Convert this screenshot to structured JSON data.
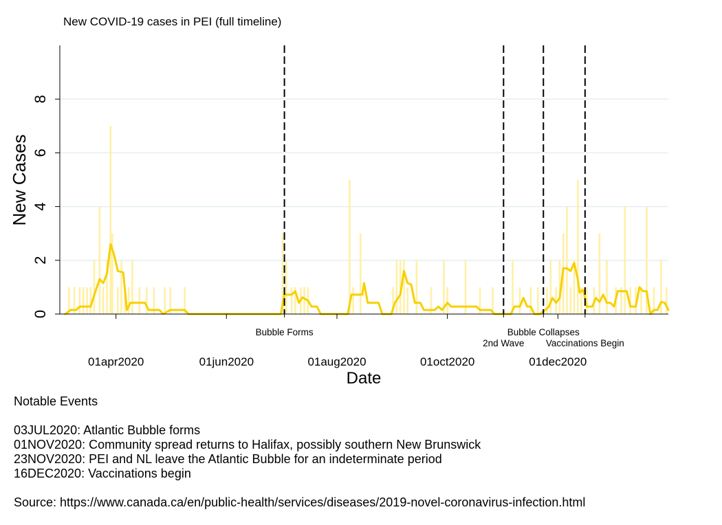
{
  "chart_data": {
    "type": "bar",
    "title": "New COVID-19 cases in PEI (full timeline)",
    "xlabel": "Date",
    "ylabel": "New Cases",
    "xlim": [
      "2020-03-01",
      "2021-01-31"
    ],
    "ylim": [
      0,
      10
    ],
    "x_ticks": [
      {
        "date": "2020-04-01",
        "label": "01apr2020"
      },
      {
        "date": "2020-06-01",
        "label": "01jun2020"
      },
      {
        "date": "2020-08-01",
        "label": "01aug2020"
      },
      {
        "date": "2020-10-01",
        "label": "01oct2020"
      },
      {
        "date": "2020-12-01",
        "label": "01dec2020"
      }
    ],
    "y_ticks": [
      0,
      2,
      4,
      6,
      8
    ],
    "grid": true,
    "bar_color": "#FFF0A8",
    "line_color": "#F7D000",
    "events": [
      {
        "date": "2020-07-03",
        "label": "Bubble Forms"
      },
      {
        "date": "2020-11-01",
        "label": "2nd Wave"
      },
      {
        "date": "2020-11-23",
        "label": "Bubble Collapses"
      },
      {
        "date": "2020-12-16",
        "label": "Vaccinations Begin"
      }
    ],
    "series": [
      {
        "name": "daily new cases",
        "points": [
          [
            "2020-03-06",
            1
          ],
          [
            "2020-03-09",
            1
          ],
          [
            "2020-03-12",
            1
          ],
          [
            "2020-03-14",
            1
          ],
          [
            "2020-03-16",
            1
          ],
          [
            "2020-03-18",
            1
          ],
          [
            "2020-03-20",
            2
          ],
          [
            "2020-03-23",
            4
          ],
          [
            "2020-03-25",
            1
          ],
          [
            "2020-03-27",
            2
          ],
          [
            "2020-03-29",
            7
          ],
          [
            "2020-03-30",
            3
          ],
          [
            "2020-04-02",
            1
          ],
          [
            "2020-04-04",
            2
          ],
          [
            "2020-04-06",
            1
          ],
          [
            "2020-04-08",
            1
          ],
          [
            "2020-04-10",
            2
          ],
          [
            "2020-04-14",
            1
          ],
          [
            "2020-04-18",
            1
          ],
          [
            "2020-04-22",
            1
          ],
          [
            "2020-04-28",
            1
          ],
          [
            "2020-05-01",
            1
          ],
          [
            "2020-05-09",
            1
          ],
          [
            "2020-07-02",
            3
          ],
          [
            "2020-07-04",
            2
          ],
          [
            "2020-07-07",
            1
          ],
          [
            "2020-07-09",
            1
          ],
          [
            "2020-07-12",
            1
          ],
          [
            "2020-07-14",
            1
          ],
          [
            "2020-07-16",
            1
          ],
          [
            "2020-08-08",
            5
          ],
          [
            "2020-08-10",
            1
          ],
          [
            "2020-08-14",
            3
          ],
          [
            "2020-09-01",
            1
          ],
          [
            "2020-09-03",
            2
          ],
          [
            "2020-09-05",
            2
          ],
          [
            "2020-09-07",
            2
          ],
          [
            "2020-09-09",
            1
          ],
          [
            "2020-09-14",
            2
          ],
          [
            "2020-09-22",
            1
          ],
          [
            "2020-09-29",
            2
          ],
          [
            "2020-10-01",
            1
          ],
          [
            "2020-10-11",
            2
          ],
          [
            "2020-10-19",
            1
          ],
          [
            "2020-10-26",
            1
          ],
          [
            "2020-11-06",
            2
          ],
          [
            "2020-11-10",
            1
          ],
          [
            "2020-11-16",
            1
          ],
          [
            "2020-11-20",
            1
          ],
          [
            "2020-11-25",
            1
          ],
          [
            "2020-11-27",
            2
          ],
          [
            "2020-11-30",
            1
          ],
          [
            "2020-12-02",
            2
          ],
          [
            "2020-12-04",
            3
          ],
          [
            "2020-12-06",
            4
          ],
          [
            "2020-12-08",
            1
          ],
          [
            "2020-12-10",
            2
          ],
          [
            "2020-12-12",
            5
          ],
          [
            "2020-12-14",
            1
          ],
          [
            "2020-12-17",
            1
          ],
          [
            "2020-12-21",
            1
          ],
          [
            "2020-12-24",
            3
          ],
          [
            "2020-12-28",
            2
          ],
          [
            "2021-01-02",
            1
          ],
          [
            "2021-01-05",
            1
          ],
          [
            "2021-01-07",
            4
          ],
          [
            "2021-01-10",
            1
          ],
          [
            "2021-01-13",
            1
          ],
          [
            "2021-01-16",
            1
          ],
          [
            "2021-01-19",
            4
          ],
          [
            "2021-01-23",
            1
          ],
          [
            "2021-01-27",
            2
          ],
          [
            "2021-01-30",
            1
          ]
        ]
      },
      {
        "name": "7-day average",
        "points": [
          [
            "2020-03-04",
            0
          ],
          [
            "2020-03-07",
            0.15
          ],
          [
            "2020-03-10",
            0.15
          ],
          [
            "2020-03-12",
            0.28
          ],
          [
            "2020-03-18",
            0.28
          ],
          [
            "2020-03-20",
            0.7
          ],
          [
            "2020-03-23",
            1.3
          ],
          [
            "2020-03-25",
            1.15
          ],
          [
            "2020-03-27",
            1.5
          ],
          [
            "2020-03-29",
            2.6
          ],
          [
            "2020-03-31",
            2.2
          ],
          [
            "2020-04-02",
            1.6
          ],
          [
            "2020-04-05",
            1.55
          ],
          [
            "2020-04-07",
            0.15
          ],
          [
            "2020-04-09",
            0.42
          ],
          [
            "2020-04-17",
            0.42
          ],
          [
            "2020-04-19",
            0.15
          ],
          [
            "2020-04-25",
            0.15
          ],
          [
            "2020-04-27",
            0
          ],
          [
            "2020-05-01",
            0.15
          ],
          [
            "2020-05-09",
            0.15
          ],
          [
            "2020-05-11",
            0
          ],
          [
            "2020-07-01",
            0
          ],
          [
            "2020-07-03",
            0.72
          ],
          [
            "2020-07-07",
            0.72
          ],
          [
            "2020-07-09",
            0.85
          ],
          [
            "2020-07-11",
            0.42
          ],
          [
            "2020-07-13",
            0.62
          ],
          [
            "2020-07-16",
            0.5
          ],
          [
            "2020-07-18",
            0.28
          ],
          [
            "2020-07-21",
            0.28
          ],
          [
            "2020-07-23",
            0
          ],
          [
            "2020-08-07",
            0
          ],
          [
            "2020-08-09",
            0.72
          ],
          [
            "2020-08-15",
            0.72
          ],
          [
            "2020-08-16",
            1.15
          ],
          [
            "2020-08-18",
            0.42
          ],
          [
            "2020-08-24",
            0.42
          ],
          [
            "2020-08-26",
            0
          ],
          [
            "2020-08-31",
            0
          ],
          [
            "2020-09-02",
            0.42
          ],
          [
            "2020-09-05",
            0.72
          ],
          [
            "2020-09-07",
            1.6
          ],
          [
            "2020-09-09",
            1.15
          ],
          [
            "2020-09-11",
            1.1
          ],
          [
            "2020-09-13",
            0.42
          ],
          [
            "2020-09-16",
            0.42
          ],
          [
            "2020-09-18",
            0.15
          ],
          [
            "2020-09-24",
            0.15
          ],
          [
            "2020-09-26",
            0.28
          ],
          [
            "2020-09-28",
            0.15
          ],
          [
            "2020-10-01",
            0.42
          ],
          [
            "2020-10-03",
            0.28
          ],
          [
            "2020-10-17",
            0.28
          ],
          [
            "2020-10-19",
            0.15
          ],
          [
            "2020-10-25",
            0.15
          ],
          [
            "2020-10-27",
            0
          ],
          [
            "2020-11-05",
            0
          ],
          [
            "2020-11-07",
            0.28
          ],
          [
            "2020-11-10",
            0.28
          ],
          [
            "2020-11-12",
            0.6
          ],
          [
            "2020-11-14",
            0.28
          ],
          [
            "2020-11-16",
            0.28
          ],
          [
            "2020-11-18",
            0
          ],
          [
            "2020-11-21",
            0
          ],
          [
            "2020-11-24",
            0.15
          ],
          [
            "2020-11-26",
            0.28
          ],
          [
            "2020-11-28",
            0.6
          ],
          [
            "2020-11-30",
            0.42
          ],
          [
            "2020-12-02",
            0.6
          ],
          [
            "2020-12-04",
            1.7
          ],
          [
            "2020-12-06",
            1.7
          ],
          [
            "2020-12-08",
            1.6
          ],
          [
            "2020-12-10",
            1.9
          ],
          [
            "2020-12-12",
            1.3
          ],
          [
            "2020-12-13",
            0.8
          ],
          [
            "2020-12-15",
            0.9
          ],
          [
            "2020-12-17",
            0.28
          ],
          [
            "2020-12-20",
            0.28
          ],
          [
            "2020-12-22",
            0.6
          ],
          [
            "2020-12-24",
            0.45
          ],
          [
            "2020-12-26",
            0.72
          ],
          [
            "2020-12-28",
            0.42
          ],
          [
            "2020-12-30",
            0.42
          ],
          [
            "2021-01-01",
            0.28
          ],
          [
            "2021-01-03",
            0.85
          ],
          [
            "2021-01-08",
            0.85
          ],
          [
            "2021-01-10",
            0.28
          ],
          [
            "2021-01-13",
            0.28
          ],
          [
            "2021-01-15",
            1
          ],
          [
            "2021-01-17",
            0.85
          ],
          [
            "2021-01-19",
            0.85
          ],
          [
            "2021-01-21",
            0
          ],
          [
            "2021-01-23",
            0.15
          ],
          [
            "2021-01-25",
            0.15
          ],
          [
            "2021-01-27",
            0.45
          ],
          [
            "2021-01-29",
            0.42
          ],
          [
            "2021-01-31",
            0.15
          ]
        ]
      }
    ]
  },
  "notes": {
    "heading": "Notable Events",
    "events": [
      "03JUL2020: Atlantic Bubble forms",
      "01NOV2020: Community spread returns to Halifax, possibly southern New Brunswick",
      "23NOV2020: PEI and NL leave the Atlantic Bubble for an indeterminate period",
      "16DEC2020: Vaccinations begin"
    ],
    "source": "Source: https://www.canada.ca/en/public-health/services/diseases/2019-novel-coronavirus-infection.html"
  }
}
